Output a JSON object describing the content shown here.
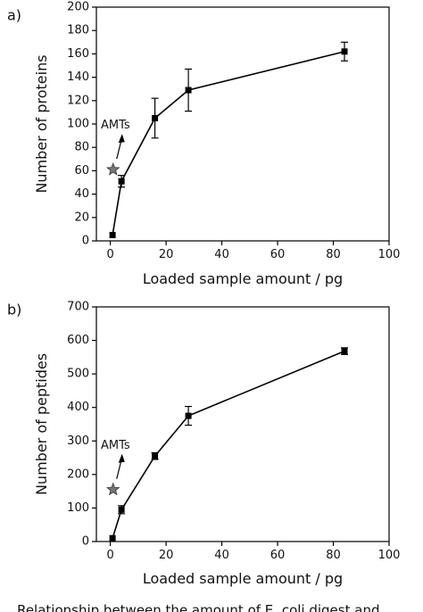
{
  "chart_data": [
    {
      "type": "line",
      "panel_label": "a)",
      "xlabel": "Loaded sample amount / pg",
      "ylabel": "Number of proteins",
      "xlim": [
        -5,
        100
      ],
      "ylim": [
        0,
        200
      ],
      "xticks": [
        0,
        20,
        40,
        60,
        80,
        100
      ],
      "yticks": [
        0,
        20,
        40,
        60,
        80,
        100,
        120,
        140,
        160,
        180,
        200
      ],
      "grid": false,
      "series": [
        {
          "x": [
            0.8,
            4,
            16,
            28,
            84
          ],
          "y": [
            5,
            51,
            105,
            129,
            162
          ],
          "err": [
            0,
            5,
            17,
            18,
            8
          ],
          "marker": "square",
          "color": "#000000"
        }
      ],
      "annotation": {
        "text": "AMTs",
        "x": 1,
        "y": 61,
        "marker": "star",
        "color": "#777777"
      }
    },
    {
      "type": "line",
      "panel_label": "b)",
      "xlabel": "Loaded sample amount / pg",
      "ylabel": "Number of peptides",
      "xlim": [
        -5,
        100
      ],
      "ylim": [
        0,
        700
      ],
      "xticks": [
        0,
        20,
        40,
        60,
        80,
        100
      ],
      "yticks": [
        0,
        100,
        200,
        300,
        400,
        500,
        600,
        700
      ],
      "grid": false,
      "series": [
        {
          "x": [
            0.8,
            4,
            16,
            28,
            84
          ],
          "y": [
            10,
            95,
            255,
            375,
            568
          ],
          "err": [
            0,
            12,
            10,
            28,
            10
          ],
          "marker": "square",
          "color": "#000000"
        }
      ],
      "annotation": {
        "text": "AMTs",
        "x": 1,
        "y": 155,
        "marker": "star",
        "color": "#777777"
      }
    }
  ],
  "caption": "...  Relationship between the amount of E. coli digest and"
}
